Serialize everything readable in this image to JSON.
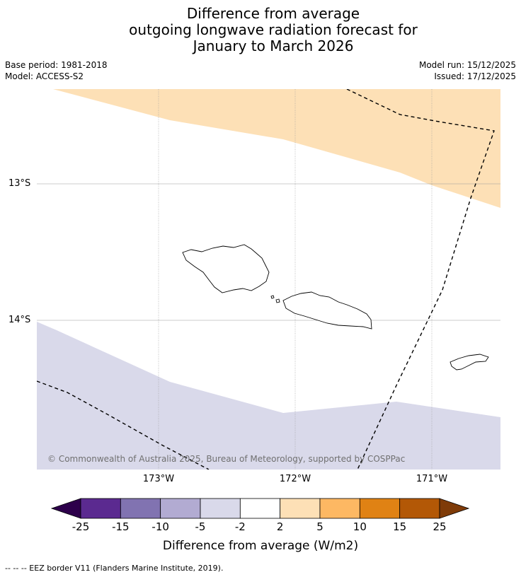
{
  "title": {
    "line1": "Difference from average",
    "line2": "outgoing longwave radiation forecast for",
    "line3": "January to March 2026"
  },
  "meta": {
    "base_period": "Base period: 1981-2018",
    "model": "Model: ACCESS-S2",
    "model_run": "Model run: 15/12/2025",
    "issued": "Issued: 17/12/2025"
  },
  "map": {
    "lat_labels": [
      "13°S",
      "14°S"
    ],
    "lon_labels": [
      "173°W",
      "172°W",
      "171°W"
    ],
    "copyright": "© Commonwealth of Australia 2025, Bureau of Meteorology, supported by COSPPac",
    "colors": {
      "positive_region": "#fde0b6",
      "negative_region": "#d9d9ea",
      "land_outline": "#000000",
      "eez_border": "#000000",
      "gridline": "#888888"
    }
  },
  "colorbar": {
    "ticks": [
      "-25",
      "-15",
      "-10",
      "-5",
      "-2",
      "2",
      "5",
      "10",
      "15",
      "25"
    ],
    "colors": [
      "#2d004b",
      "#5b2a90",
      "#8173b1",
      "#b2abd2",
      "#d9d9ea",
      "#ffffff",
      "#fde0b6",
      "#fdb863",
      "#e08214",
      "#b35806",
      "#7f3b08"
    ],
    "title": "Difference from average (W/m2)"
  },
  "footnote": "--  --  -- EEZ border V11 (Flanders Marine Institute, 2019)."
}
